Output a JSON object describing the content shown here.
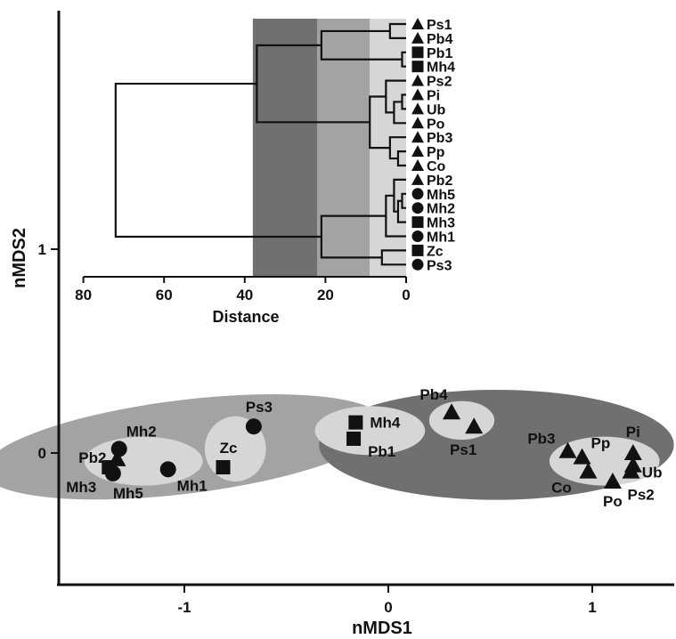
{
  "chart_data": [
    {
      "type": "scatter",
      "xlabel": "nMDS1",
      "ylabel": "nMDS2",
      "x_ticks": [
        "-1",
        "0",
        "1"
      ],
      "y_ticks": [
        "0",
        "1"
      ],
      "xlim": [
        -1.65,
        1.4
      ],
      "ylim": [
        -0.63,
        1.47
      ],
      "colors": {
        "outer_ellipse": "#707070",
        "left_ellipse": "#a3a3a3",
        "inner_ellipse": "#d6d6d6",
        "marker": "#111111"
      },
      "points": [
        {
          "label": "Mh2",
          "x": -1.32,
          "y": 0.02,
          "shape": "circle"
        },
        {
          "label": "Pb2",
          "x": -1.33,
          "y": -0.03,
          "shape": "triangle"
        },
        {
          "label": "Mh3",
          "x": -1.37,
          "y": -0.07,
          "shape": "square"
        },
        {
          "label": "Mh5",
          "x": -1.35,
          "y": -0.1,
          "shape": "circle"
        },
        {
          "label": "Mh1",
          "x": -1.08,
          "y": -0.08,
          "shape": "circle"
        },
        {
          "label": "Zc",
          "x": -0.81,
          "y": -0.07,
          "shape": "square"
        },
        {
          "label": "Ps3",
          "x": -0.66,
          "y": 0.13,
          "shape": "circle"
        },
        {
          "label": "Mh4",
          "x": -0.16,
          "y": 0.15,
          "shape": "square"
        },
        {
          "label": "Pb1",
          "x": -0.17,
          "y": 0.07,
          "shape": "square"
        },
        {
          "label": "Pb4",
          "x": 0.31,
          "y": 0.2,
          "shape": "triangle"
        },
        {
          "label": "Ps1",
          "x": 0.42,
          "y": 0.13,
          "shape": "triangle"
        },
        {
          "label": "Pb3",
          "x": 0.88,
          "y": 0.01,
          "shape": "triangle"
        },
        {
          "label": "Pp",
          "x": 0.95,
          "y": -0.02,
          "shape": "triangle"
        },
        {
          "label": "Co",
          "x": 0.98,
          "y": -0.09,
          "shape": "triangle"
        },
        {
          "label": "Po",
          "x": 1.1,
          "y": -0.14,
          "shape": "triangle"
        },
        {
          "label": "Pi",
          "x": 1.2,
          "y": 0.0,
          "shape": "triangle"
        },
        {
          "label": "Ub",
          "x": 1.2,
          "y": -0.06,
          "shape": "triangle"
        },
        {
          "label": "Ps2",
          "x": 1.19,
          "y": -0.09,
          "shape": "triangle"
        }
      ],
      "groups": [
        {
          "members": [
            "Mh2",
            "Pb2",
            "Mh3",
            "Mh5",
            "Mh1",
            "Zc",
            "Ps3"
          ],
          "cx": -1.0,
          "cy": 0.03,
          "rx": 0.99,
          "ry": 0.23,
          "fill": "#a3a3a3",
          "angle": -7
        },
        {
          "members": [
            "Mh2",
            "Pb2",
            "Mh3",
            "Mh5",
            "Mh1"
          ],
          "cx": -1.2,
          "cy": -0.04,
          "rx": 0.29,
          "ry": 0.12,
          "fill": "#d6d6d6",
          "angle": 0
        },
        {
          "members": [
            "Zc",
            "Ps3"
          ],
          "cx": -0.75,
          "cy": 0.02,
          "rx": 0.15,
          "ry": 0.16,
          "fill": "#d6d6d6",
          "angle": 0
        },
        {
          "members": [
            "Mh4",
            "Pb1",
            "Pb4",
            "Ps1",
            "Pb3",
            "Pp",
            "Co",
            "Po",
            "Pi",
            "Ub",
            "Ps2"
          ],
          "cx": 0.53,
          "cy": 0.04,
          "rx": 0.87,
          "ry": 0.27,
          "fill": "#707070",
          "angle": 0
        },
        {
          "members": [
            "Mh4",
            "Pb1"
          ],
          "cx": -0.09,
          "cy": 0.11,
          "rx": 0.27,
          "ry": 0.12,
          "fill": "#d6d6d6",
          "angle": 0
        },
        {
          "members": [
            "Pb4",
            "Ps1"
          ],
          "cx": 0.36,
          "cy": 0.16,
          "rx": 0.16,
          "ry": 0.095,
          "fill": "#d6d6d6",
          "angle": 0
        },
        {
          "members": [
            "Pb3",
            "Pp",
            "Co",
            "Po",
            "Pi",
            "Ub",
            "Ps2"
          ],
          "cx": 1.06,
          "cy": -0.04,
          "rx": 0.27,
          "ry": 0.12,
          "fill": "#d6d6d6",
          "angle": 0
        }
      ]
    },
    {
      "type": "dendrogram",
      "xlabel": "Distance",
      "x_ticks": [
        "80",
        "60",
        "40",
        "20",
        "0"
      ],
      "xlim": [
        80,
        0
      ],
      "distance_bands": [
        {
          "from": 38,
          "to": 22,
          "fill": "#707070"
        },
        {
          "from": 22,
          "to": 9,
          "fill": "#a3a3a3"
        },
        {
          "from": 9,
          "to": 0,
          "fill": "#d6d6d6"
        }
      ],
      "leaves": [
        {
          "label": "Ps1",
          "shape": "triangle"
        },
        {
          "label": "Pb4",
          "shape": "triangle"
        },
        {
          "label": "Pb1",
          "shape": "square"
        },
        {
          "label": "Mh4",
          "shape": "square"
        },
        {
          "label": "Ps2",
          "shape": "triangle"
        },
        {
          "label": "Pi",
          "shape": "triangle"
        },
        {
          "label": "Ub",
          "shape": "triangle"
        },
        {
          "label": "Po",
          "shape": "triangle"
        },
        {
          "label": "Pb3",
          "shape": "triangle"
        },
        {
          "label": "Pp",
          "shape": "triangle"
        },
        {
          "label": "Co",
          "shape": "triangle"
        },
        {
          "label": "Pb2",
          "shape": "triangle"
        },
        {
          "label": "Mh5",
          "shape": "circle"
        },
        {
          "label": "Mh2",
          "shape": "circle"
        },
        {
          "label": "Mh3",
          "shape": "square"
        },
        {
          "label": "Mh1",
          "shape": "circle"
        },
        {
          "label": "Zc",
          "shape": "square"
        },
        {
          "label": "Ps3",
          "shape": "circle"
        }
      ],
      "merges": [
        {
          "a": "L0",
          "b": "L1",
          "height": 4
        },
        {
          "a": "L2",
          "b": "L3",
          "height": 1
        },
        {
          "a": "N0",
          "b": "N1",
          "height": 21
        },
        {
          "a": "L5",
          "b": "L6",
          "height": 1
        },
        {
          "a": "N3",
          "b": "L7",
          "height": 3
        },
        {
          "a": "L4",
          "b": "N4",
          "height": 5
        },
        {
          "a": "L9",
          "b": "L10",
          "height": 2
        },
        {
          "a": "L8",
          "b": "N6",
          "height": 4
        },
        {
          "a": "N5",
          "b": "N7",
          "height": 9
        },
        {
          "a": "N2",
          "b": "N8",
          "height": 37
        },
        {
          "a": "L12",
          "b": "L13",
          "height": 1
        },
        {
          "a": "N10",
          "b": "L14",
          "height": 2
        },
        {
          "a": "L11",
          "b": "N11",
          "height": 3
        },
        {
          "a": "N12",
          "b": "L15",
          "height": 5
        },
        {
          "a": "L16",
          "b": "L17",
          "height": 6
        },
        {
          "a": "N13",
          "b": "N14",
          "height": 21
        },
        {
          "a": "N9",
          "b": "N15",
          "height": 72
        }
      ]
    }
  ]
}
